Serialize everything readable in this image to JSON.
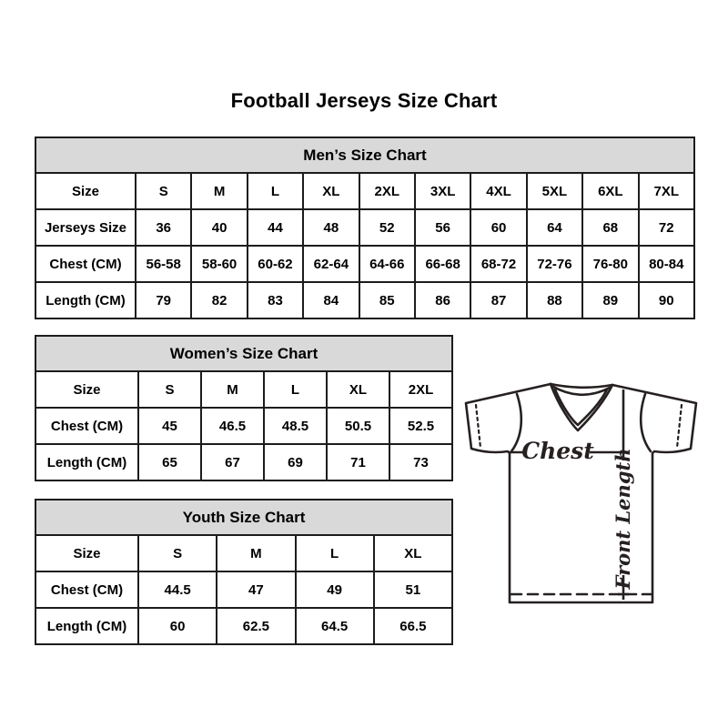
{
  "page": {
    "title": "Football Jerseys Size Chart"
  },
  "tables": {
    "men": {
      "title": "Men’s Size Chart",
      "header": [
        "Size",
        "S",
        "M",
        "L",
        "XL",
        "2XL",
        "3XL",
        "4XL",
        "5XL",
        "6XL",
        "7XL"
      ],
      "rows": [
        [
          "Jerseys Size",
          "36",
          "40",
          "44",
          "48",
          "52",
          "56",
          "60",
          "64",
          "68",
          "72"
        ],
        [
          "Chest (CM)",
          "56-58",
          "58-60",
          "60-62",
          "62-64",
          "64-66",
          "66-68",
          "68-72",
          "72-76",
          "76-80",
          "80-84"
        ],
        [
          "Length (CM)",
          "79",
          "82",
          "83",
          "84",
          "85",
          "86",
          "87",
          "88",
          "89",
          "90"
        ]
      ]
    },
    "women": {
      "title": "Women’s Size Chart",
      "header": [
        "Size",
        "S",
        "M",
        "L",
        "XL",
        "2XL"
      ],
      "rows": [
        [
          "Chest (CM)",
          "45",
          "46.5",
          "48.5",
          "50.5",
          "52.5"
        ],
        [
          "Length (CM)",
          "65",
          "67",
          "69",
          "71",
          "73"
        ]
      ]
    },
    "youth": {
      "title": "Youth Size Chart",
      "header": [
        "Size",
        "S",
        "M",
        "L",
        "XL"
      ],
      "rows": [
        [
          "Chest (CM)",
          "44.5",
          "47",
          "49",
          "51"
        ],
        [
          "Length (CM)",
          "60",
          "62.5",
          "64.5",
          "66.5"
        ]
      ]
    }
  },
  "diagram": {
    "chest_label": "Chest",
    "front_length_label": "Front Length"
  },
  "colors": {
    "background": "#ffffff",
    "table_header_bg": "#d9d9d9",
    "border": "#1c1c1c",
    "text": "#000000",
    "jersey_line": "#262020"
  }
}
